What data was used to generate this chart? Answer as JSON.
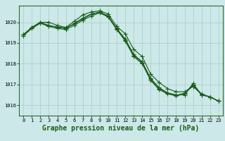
{
  "title": "Graphe pression niveau de la mer (hPa)",
  "background_color": "#cce8e8",
  "grid_color": "#a8ccc8",
  "line_color": "#1a5c1a",
  "x_ticks": [
    0,
    1,
    2,
    3,
    4,
    5,
    6,
    7,
    8,
    9,
    10,
    11,
    12,
    13,
    14,
    15,
    16,
    17,
    18,
    19,
    20,
    21,
    22,
    23
  ],
  "ylim": [
    1015.5,
    1020.8
  ],
  "yticks": [
    1016,
    1017,
    1018,
    1019,
    1020
  ],
  "series": [
    [
      1019.4,
      1019.75,
      1020.0,
      1020.0,
      1019.85,
      1019.75,
      1020.05,
      1020.35,
      1020.5,
      1020.55,
      1020.4,
      1019.8,
      1019.45,
      1018.7,
      1018.35,
      1017.5,
      1017.1,
      1016.8,
      1016.65,
      1016.65,
      1016.9,
      1016.55,
      1016.4,
      1016.2
    ],
    [
      1019.4,
      1019.75,
      1020.0,
      1019.85,
      1019.75,
      1019.7,
      1019.95,
      1020.2,
      1020.4,
      1020.5,
      1020.3,
      1019.7,
      1019.2,
      1018.45,
      1018.1,
      1017.3,
      1016.85,
      1016.6,
      1016.5,
      1016.5,
      1017.05,
      1016.5,
      1016.4,
      1016.2
    ],
    [
      1019.35,
      1019.7,
      1019.95,
      1019.8,
      1019.7,
      1019.65,
      1019.85,
      1020.1,
      1020.3,
      1020.45,
      1020.25,
      1019.65,
      1019.1,
      1018.35,
      1018.0,
      1017.2,
      1016.75,
      1016.55,
      1016.45,
      1016.55,
      1016.95,
      1016.5,
      1016.4,
      1016.2
    ],
    [
      1019.4,
      1019.75,
      1019.98,
      1019.83,
      1019.78,
      1019.72,
      1019.92,
      1020.15,
      1020.38,
      1020.48,
      1020.28,
      1019.68,
      1019.15,
      1018.4,
      1018.05,
      1017.25,
      1016.8,
      1016.58,
      1016.48,
      1016.58,
      1017.0,
      1016.52,
      1016.4,
      1016.2
    ]
  ],
  "marker": "+",
  "markersize": 4,
  "linewidth": 0.8,
  "title_fontsize": 7,
  "tick_fontsize": 5,
  "spine_color": "#2d6a2d"
}
